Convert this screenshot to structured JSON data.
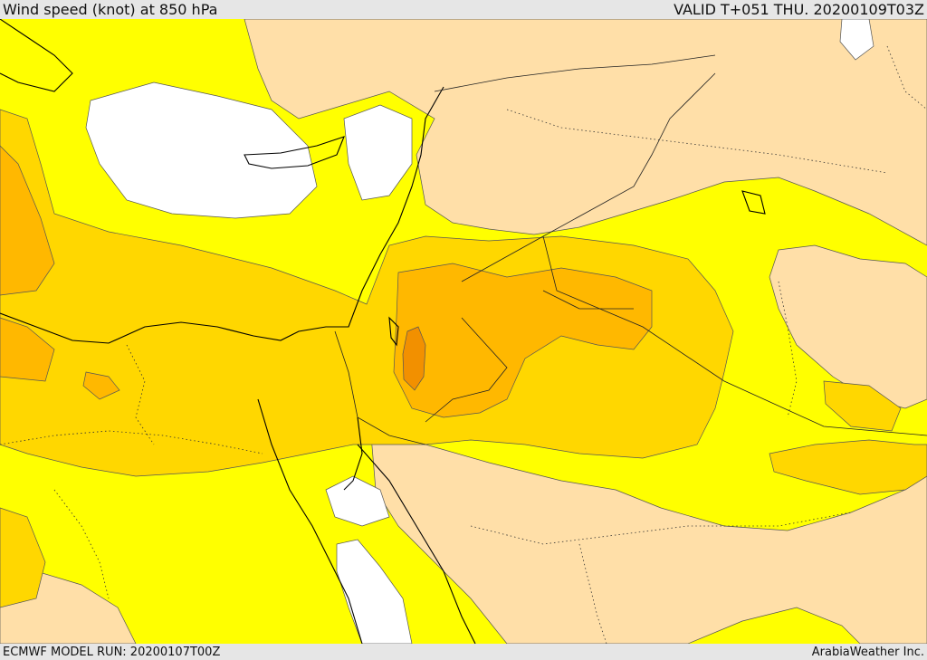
{
  "header": {
    "title": "Wind speed (knot) at 850 hPa",
    "valid": "VALID T+051 THU. 20200109T03Z"
  },
  "footer": {
    "model_run": "ECMWF MODEL RUN: 20200107T00Z",
    "credit": "ArabiaWeather Inc."
  },
  "colors": {
    "band_calm": "#ffffff",
    "band_low": "#ffdfa8",
    "band_mid": "#ffff00",
    "band_high": "#ffd700",
    "band_very_high": "#ffb800",
    "band_peak": "#f29000",
    "coastline": "#000000",
    "border": "#222222"
  }
}
